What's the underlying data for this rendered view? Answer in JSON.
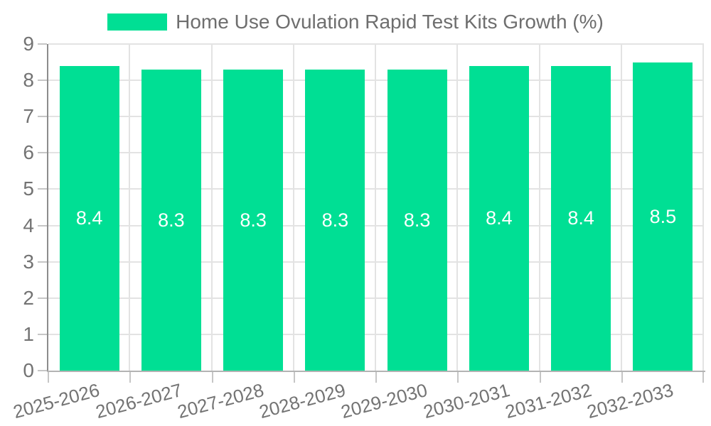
{
  "chart_data": {
    "type": "bar",
    "title": "Home Use Ovulation Rapid Test Kits Growth (%)",
    "categories": [
      "2025-2026",
      "2026-2027",
      "2027-2028",
      "2028-2029",
      "2029-2030",
      "2030-2031",
      "2031-2032",
      "2032-2033"
    ],
    "values": [
      8.4,
      8.3,
      8.3,
      8.3,
      8.3,
      8.4,
      8.4,
      8.5
    ],
    "bar_value_labels": [
      "8.4",
      "8.3",
      "8.3",
      "8.3",
      "8.3",
      "8.4",
      "8.4",
      "8.5"
    ],
    "xlabel": "",
    "ylabel": "",
    "ylim": [
      0,
      9
    ],
    "y_ticks": [
      0,
      1,
      2,
      3,
      4,
      5,
      6,
      7,
      8,
      9
    ],
    "grid": "both",
    "legend_position": "top-center",
    "x_label_rotation_deg": 15,
    "bar_label_position": "inside-center",
    "colors": {
      "bar": "#00DF94",
      "bar_label": "#FFFFFF",
      "axis_text": "#737373",
      "legend_text": "#6E6E6E",
      "gridline": "#E3E3E3",
      "axis_line_y": "#8C8C8C",
      "axis_line_x": "#B3B3B3",
      "tick": "#C6C6C6",
      "background": "#FFFFFF"
    }
  }
}
